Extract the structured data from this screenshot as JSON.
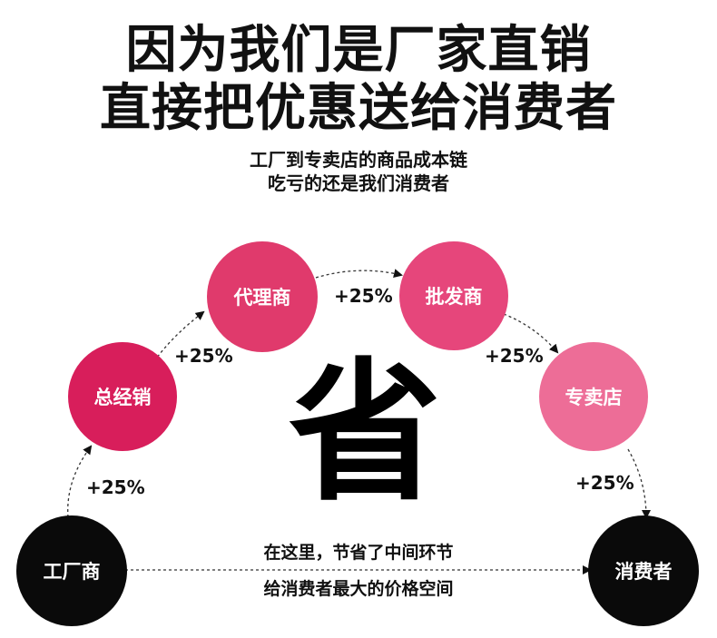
{
  "headline": {
    "line1": "因为我们是厂家直销",
    "line2": "直接把优惠送给消费者"
  },
  "subheadline": {
    "line1": "工厂到专卖店的商品成本链",
    "line2": "吃亏的还是我们消费者"
  },
  "nodes": {
    "factory": "工厂商",
    "distributor": "总经销",
    "agent": "代理商",
    "wholesaler": "批发商",
    "store": "专卖店",
    "consumer": "消费者"
  },
  "markups": {
    "factory_to_distributor": "+25%",
    "distributor_to_agent": "+25%",
    "agent_to_wholesaler": "+25%",
    "wholesaler_to_store": "+25%",
    "store_to_consumer": "+25%"
  },
  "center_char": "省",
  "bottom_note": {
    "line1": "在这里，节省了中间环节",
    "line2": "给消费者最大的价格空间"
  },
  "colors": {
    "factory": "#0a0a0a",
    "distributor": "#d81e5b",
    "agent": "#e03a6c",
    "wholesaler": "#e6467b",
    "store": "#ed6d97",
    "consumer": "#0a0a0a"
  }
}
